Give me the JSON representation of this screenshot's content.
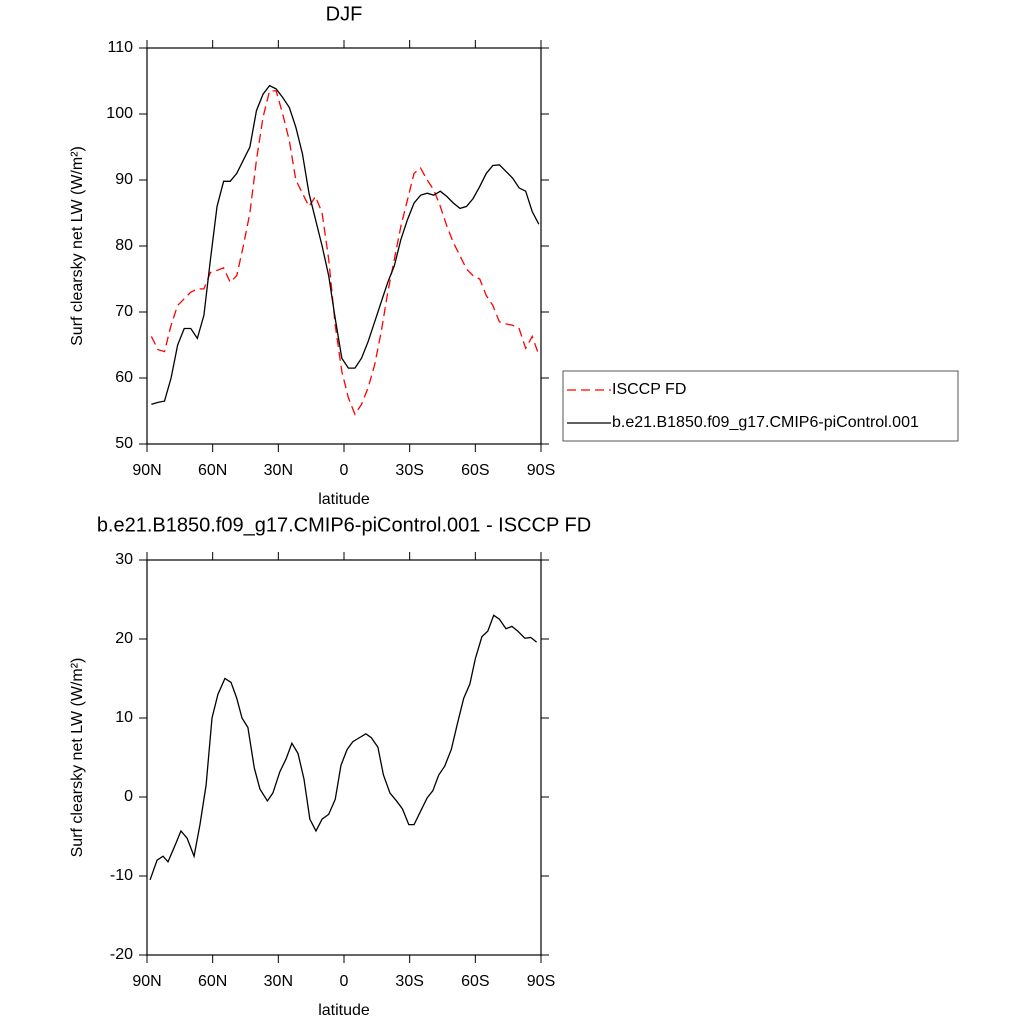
{
  "chart_data": [
    {
      "type": "line",
      "title": "DJF",
      "xlabel": "latitude",
      "ylabel": "Surf clearsky net LW (W/m²)",
      "x": [
        88,
        85,
        82,
        79,
        76,
        73,
        70,
        67,
        64,
        61,
        58,
        55,
        52,
        49,
        46,
        43,
        40,
        37,
        34,
        31,
        28,
        25,
        22,
        19,
        16,
        13,
        10,
        7,
        4,
        1,
        -2,
        -5,
        -8,
        -11,
        -14,
        -17,
        -20,
        -23,
        -26,
        -29,
        -32,
        -35,
        -38,
        -41,
        -44,
        -47,
        -50,
        -53,
        -56,
        -59,
        -62,
        -65,
        -68,
        -71,
        -74,
        -77,
        -80,
        -83,
        -86,
        -89
      ],
      "series": [
        {
          "name": "ISCCP FD",
          "color": "#ff0000",
          "line_style": "dashed",
          "values": [
            66.3,
            64.3,
            64,
            68,
            71,
            72,
            73,
            73.5,
            73.5,
            76,
            76.3,
            76.7,
            74.5,
            75.5,
            80,
            85,
            93,
            99.5,
            103.5,
            103.5,
            100,
            96,
            90,
            88,
            86,
            87.5,
            85,
            78,
            68,
            61,
            57,
            54.5,
            56,
            58.5,
            62,
            67,
            73,
            78,
            83,
            87,
            91,
            91.8,
            90,
            88.5,
            86,
            83,
            80.5,
            78.5,
            76.5,
            75.5,
            75,
            72.5,
            71,
            68.5,
            68.2,
            68,
            67.5,
            64.5,
            66.3,
            63.5
          ]
        },
        {
          "name": "b.e21.B1850.f09_g17.CMIP6-piControl.001",
          "color": "#000000",
          "line_style": "solid",
          "values": [
            56,
            56.3,
            56.5,
            60,
            65,
            67.5,
            67.5,
            66,
            69.5,
            78,
            86,
            89.8,
            89.8,
            91,
            93,
            95,
            100.5,
            103,
            104.3,
            103.8,
            102.5,
            101,
            98,
            94,
            88,
            84,
            80,
            75.5,
            69,
            63,
            61.5,
            61.5,
            63,
            65.5,
            68.5,
            71.5,
            74.5,
            77,
            81,
            84,
            86.5,
            87.7,
            88,
            87.7,
            88.3,
            87.5,
            86.5,
            85.7,
            86,
            87.2,
            89,
            91,
            92.2,
            92.3,
            91.3,
            90.3,
            88.8,
            88.3,
            85.2,
            83.3
          ]
        }
      ],
      "xlim": [
        90,
        -90
      ],
      "xticks": [
        {
          "value": 90,
          "label": "90N"
        },
        {
          "value": 60,
          "label": "60N"
        },
        {
          "value": 30,
          "label": "30N"
        },
        0,
        {
          "value": -30,
          "label": "30S"
        },
        {
          "value": -60,
          "label": "60S"
        },
        {
          "value": -90,
          "label": "90S"
        }
      ],
      "ylim": [
        50,
        110
      ],
      "yticks": [
        50,
        60,
        70,
        80,
        90,
        100,
        110
      ],
      "legend": "outside-right"
    },
    {
      "type": "line",
      "title": "b.e21.B1850.f09_g17.CMIP6-piControl.001 - ISCCP FD",
      "xlabel": "latitude",
      "ylabel": "Surf clearsky net LW (W/m²)",
      "x": [
        88.6,
        85.4,
        82.7,
        80.4,
        77,
        74.5,
        71.7,
        68.5,
        65.8,
        63,
        60.3,
        57.6,
        54.4,
        51.6,
        49,
        46.6,
        43.9,
        41,
        38.4,
        35,
        32.5,
        29.3,
        26.5,
        23.8,
        21,
        18.3,
        15.6,
        12.8,
        10,
        7,
        4,
        1.4,
        -1.4,
        -4,
        -7,
        -10,
        -12.5,
        -15.5,
        -18,
        -21,
        -24,
        -26.7,
        -29.6,
        -32,
        -35,
        -38,
        -40.6,
        -43.3,
        -46,
        -49,
        -52,
        -54.7,
        -57.5,
        -60,
        -63,
        -65.7,
        -68.4,
        -71,
        -74,
        -76.7,
        -79.4,
        -82.6,
        -85.3,
        -88
      ],
      "series": [
        {
          "name": "b.e21.B1850.f09_g17.CMIP6-piControl.001 - ISCCP FD",
          "color": "#000000",
          "line_style": "solid",
          "values": [
            -10.5,
            -8,
            -7.5,
            -8.2,
            -6,
            -4.3,
            -5.2,
            -7.5,
            -3.5,
            1.5,
            10,
            13,
            15,
            14.5,
            12.5,
            10,
            8.8,
            3.7,
            1,
            -0.5,
            0.5,
            3.2,
            4.8,
            6.8,
            5.5,
            2.3,
            -2.8,
            -4.3,
            -2.8,
            -2.2,
            -0.3,
            4,
            6,
            7,
            7.5,
            8,
            7.5,
            6.3,
            2.8,
            0.5,
            -0.5,
            -1.5,
            -3.5,
            -3.5,
            -1.8,
            -0.1,
            0.8,
            2.8,
            3.9,
            6,
            9.5,
            12.5,
            14.3,
            17.5,
            20.3,
            21,
            23,
            22.5,
            21.3,
            21.6,
            21,
            20.1,
            20.2,
            19.6
          ]
        }
      ],
      "xlim": [
        90,
        -90
      ],
      "xticks": [
        {
          "value": 90,
          "label": "90N"
        },
        {
          "value": 60,
          "label": "60N"
        },
        {
          "value": 30,
          "label": "30N"
        },
        0,
        {
          "value": -30,
          "label": "30S"
        },
        {
          "value": -60,
          "label": "60S"
        },
        {
          "value": -90,
          "label": "90S"
        }
      ],
      "ylim": [
        -20,
        30
      ],
      "yticks": [
        -20,
        -10,
        0,
        10,
        20,
        30
      ]
    }
  ]
}
